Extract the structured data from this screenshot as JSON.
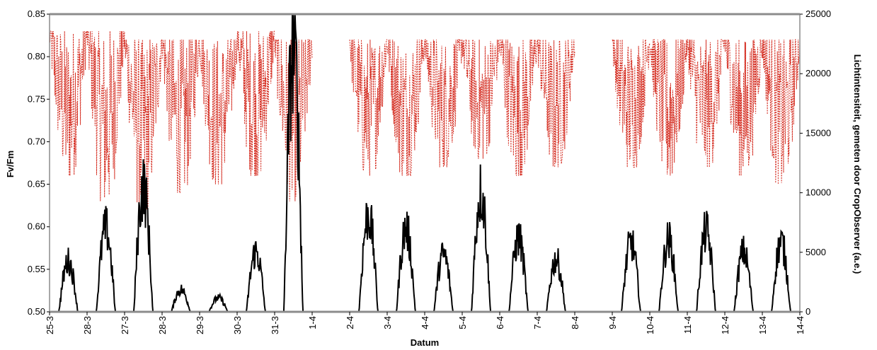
{
  "chart_data": {
    "type": "line",
    "xlabel": "Datum",
    "ylabel_left": "Fv/Fm",
    "ylabel_right": "Lichtintensiteit, gemeten door CropObserver (a.e.)",
    "ylim_left": [
      0.5,
      0.85
    ],
    "ylim_right": [
      0,
      25000
    ],
    "yticks_left": [
      "0.50",
      "0.55",
      "0.60",
      "0.65",
      "0.70",
      "0.75",
      "0.80",
      "0.85"
    ],
    "yticks_right": [
      "0",
      "5000",
      "10000",
      "15000",
      "20000",
      "25000"
    ],
    "x_tick_labels": [
      "25-3",
      "26-3",
      "27-3",
      "28-3",
      "29-3",
      "30-3",
      "31-3",
      "1-4",
      "2-4",
      "3-4",
      "4-4",
      "5-4",
      "6-4",
      "7-4",
      "8-4",
      "9-4",
      "10-4",
      "11-4",
      "12-4",
      "13-4",
      "14-4"
    ],
    "x_tick_labels_displayed": [
      "25-3",
      "28-3",
      "27-3",
      "28-3",
      "29-3",
      "30-3",
      "31-3",
      "1-4",
      "2-4",
      "3-4",
      "4-4",
      "5-4",
      "6-4",
      "7-4",
      "8-4",
      "9-4",
      "10-4",
      "11-4",
      "12-4",
      "13-4",
      "14-4"
    ],
    "grid": false,
    "legend": "none",
    "series": [
      {
        "axis": "left",
        "color": "#d42a1e",
        "style": "dotted",
        "day_min": [
          0.66,
          0.63,
          0.62,
          0.64,
          0.65,
          0.66,
          0.63,
          null,
          0.66,
          0.66,
          0.67,
          0.68,
          0.66,
          0.67,
          null,
          0.67,
          0.66,
          0.67,
          0.66,
          0.65,
          0.64
        ],
        "day_max": [
          0.83,
          0.83,
          0.82,
          0.82,
          0.82,
          0.83,
          0.82,
          null,
          0.82,
          0.82,
          0.82,
          0.82,
          0.82,
          0.82,
          null,
          0.82,
          0.82,
          0.82,
          0.82,
          0.82,
          0.82
        ]
      },
      {
        "axis": "right",
        "color": "#000000",
        "style": "solid",
        "day_peak": [
          5500,
          9000,
          13500,
          2400,
          1500,
          6500,
          28500,
          0,
          10500,
          9000,
          6200,
          13000,
          8000,
          5700,
          0,
          7500,
          7800,
          8700,
          6500,
          7500,
          7500
        ]
      }
    ]
  }
}
